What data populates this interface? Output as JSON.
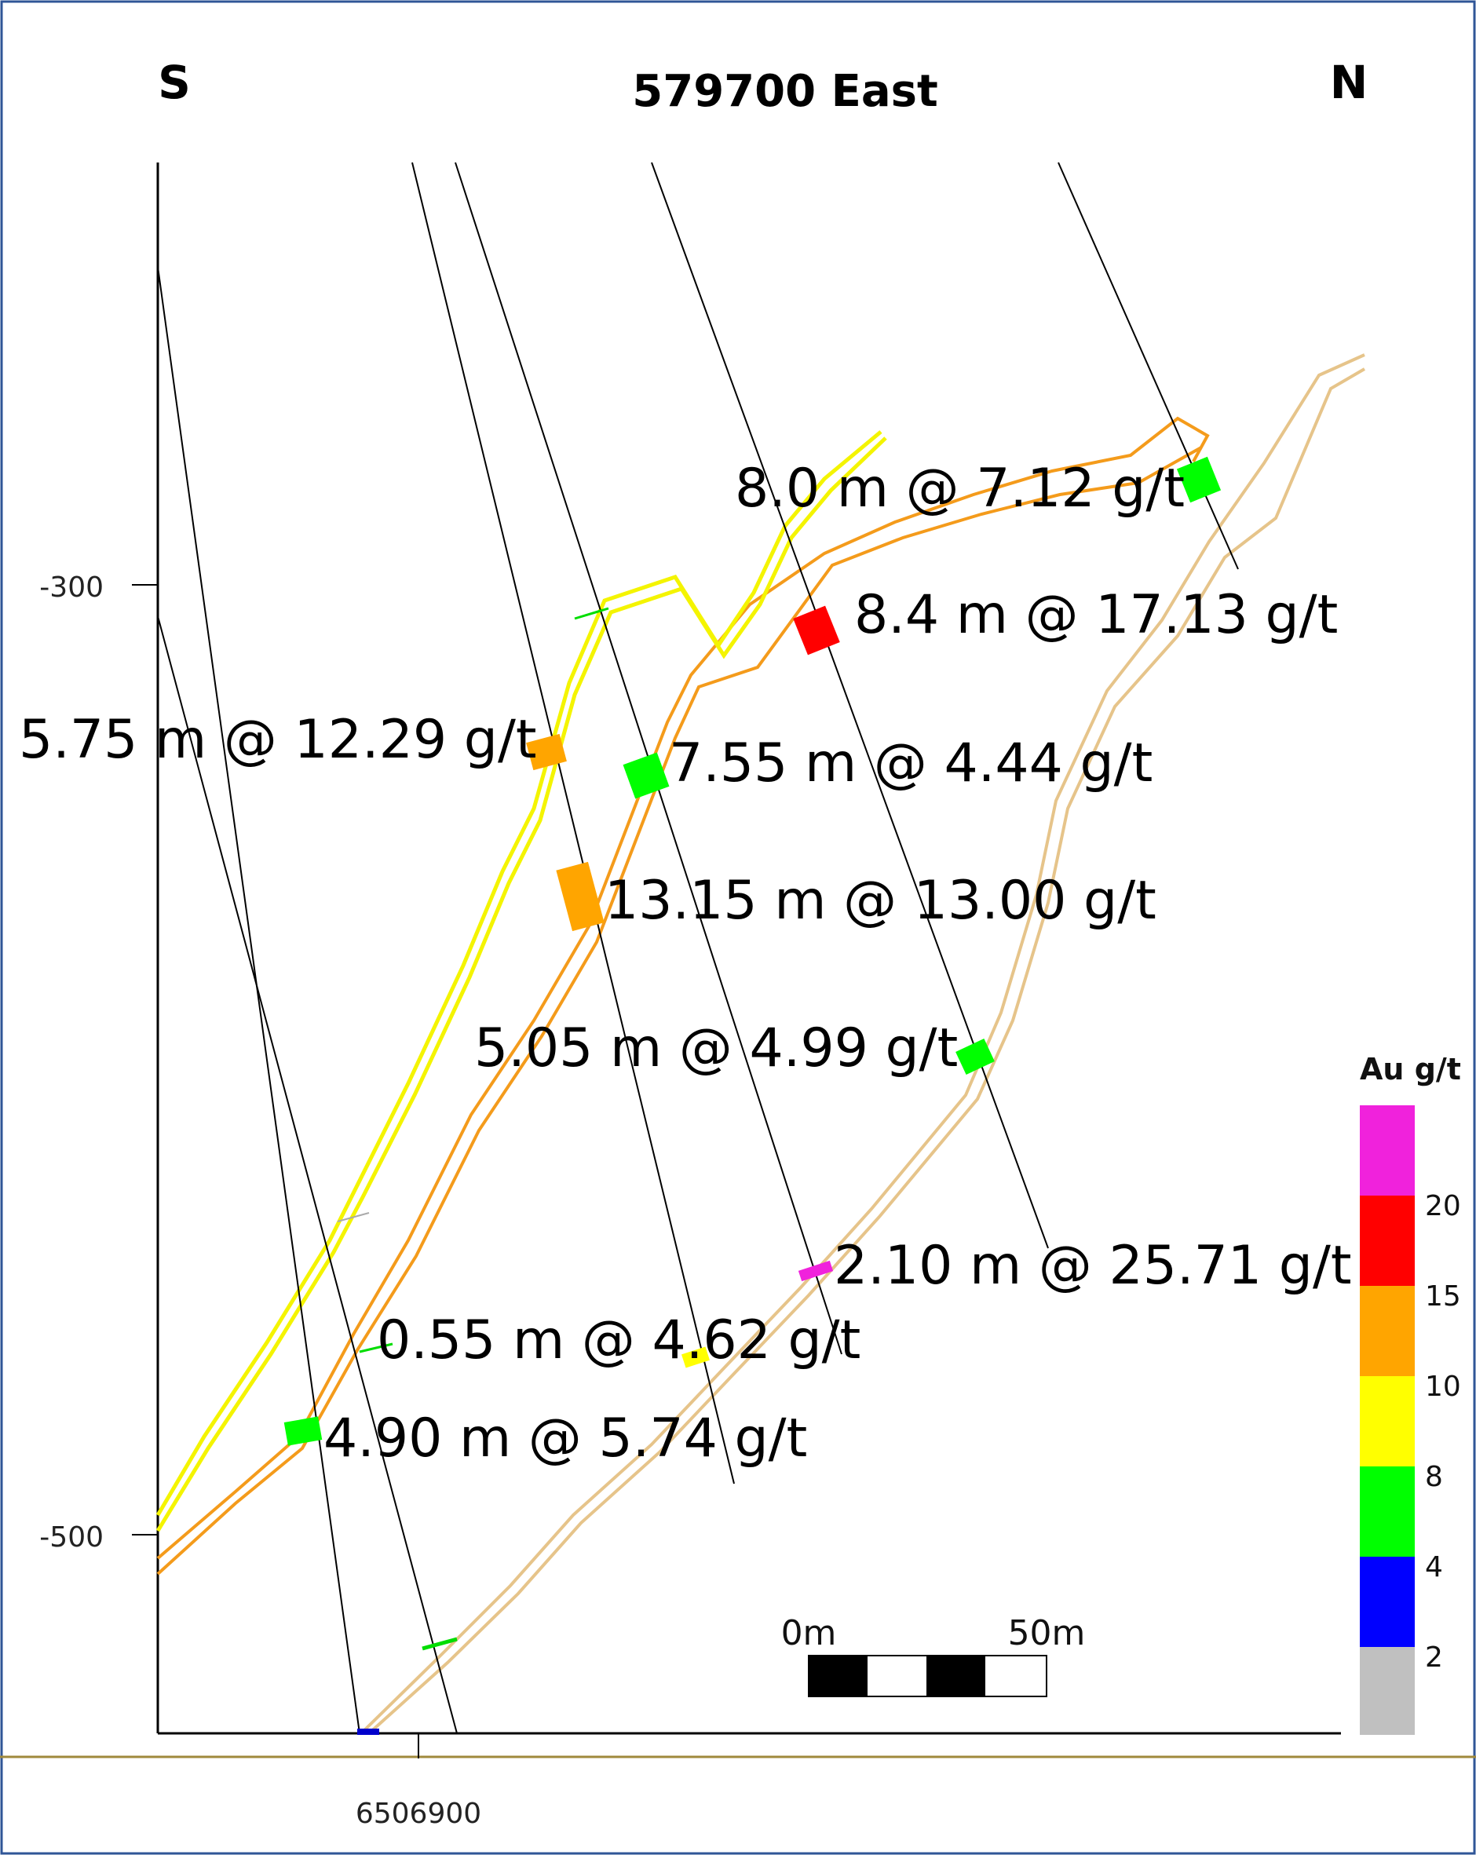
{
  "section": {
    "title": "579700 East",
    "left_direction": "S",
    "right_direction": "N"
  },
  "axes": {
    "elevation_ticks": [
      "-300",
      "-500"
    ],
    "northing_ticks": [
      "6506900"
    ]
  },
  "intercepts": [
    {
      "label": "8.0 m @ 7.12 g/t",
      "grade_class": "green"
    },
    {
      "label": "8.4 m @ 17.13 g/t",
      "grade_class": "red"
    },
    {
      "label": "5.75 m @ 12.29 g/t",
      "grade_class": "orange"
    },
    {
      "label": "7.55 m @ 4.44 g/t",
      "grade_class": "green"
    },
    {
      "label": "13.15 m @ 13.00 g/t",
      "grade_class": "orange"
    },
    {
      "label": "5.05 m @ 4.99 g/t",
      "grade_class": "green"
    },
    {
      "label": "2.10 m @ 25.71 g/t",
      "grade_class": "magenta"
    },
    {
      "label": "0.55 m @ 4.62 g/t",
      "grade_class": "green"
    },
    {
      "label": "4.90 m @ 5.74 g/t",
      "grade_class": "green"
    }
  ],
  "legend": {
    "title": "Au g/t",
    "bins": [
      {
        "label": "20",
        "color": "#f022dc"
      },
      {
        "label": "15",
        "color": "#ff0000"
      },
      {
        "label": "10",
        "color": "#ffa500"
      },
      {
        "label": "8",
        "color": "#ffff00"
      },
      {
        "label": "4",
        "color": "#00ff00"
      },
      {
        "label": "2",
        "color": "#0000ff"
      },
      {
        "label": "",
        "color": "#c0c0c0"
      }
    ]
  },
  "scale_bar": {
    "start_label": "0m",
    "end_label": "50m"
  },
  "colors": {
    "frame": "#2f5597",
    "bottom_rule": "#a08a3c",
    "yellow_zone": "#f4f400",
    "orange_zone": "#f49b1b",
    "tan_zone": "#e6c48a",
    "drill_trace": "#000000"
  }
}
